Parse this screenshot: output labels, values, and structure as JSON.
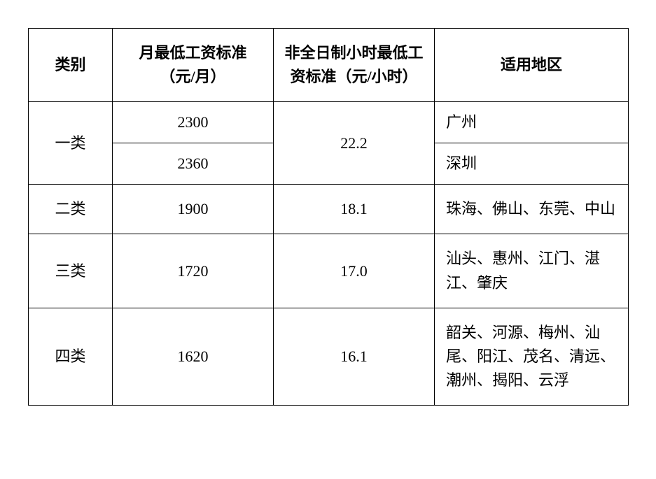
{
  "table": {
    "headers": {
      "category": "类别",
      "monthly": "月最低工资标准（元/月）",
      "hourly": "非全日制小时最低工资标准（元/小时）",
      "regions": "适用地区"
    },
    "rows": {
      "cat1": {
        "label": "一类",
        "hourly": "22.2",
        "sub1": {
          "monthly": "2300",
          "region": "广州"
        },
        "sub2": {
          "monthly": "2360",
          "region": "深圳"
        }
      },
      "cat2": {
        "label": "二类",
        "monthly": "1900",
        "hourly": "18.1",
        "region": "珠海、佛山、东莞、中山"
      },
      "cat3": {
        "label": "三类",
        "monthly": "1720",
        "hourly": "17.0",
        "region": "汕头、惠州、江门、湛江、肇庆"
      },
      "cat4": {
        "label": "四类",
        "monthly": "1620",
        "hourly": "16.1",
        "region": "韶关、河源、梅州、汕尾、阳江、茂名、清远、潮州、揭阳、云浮"
      }
    }
  }
}
